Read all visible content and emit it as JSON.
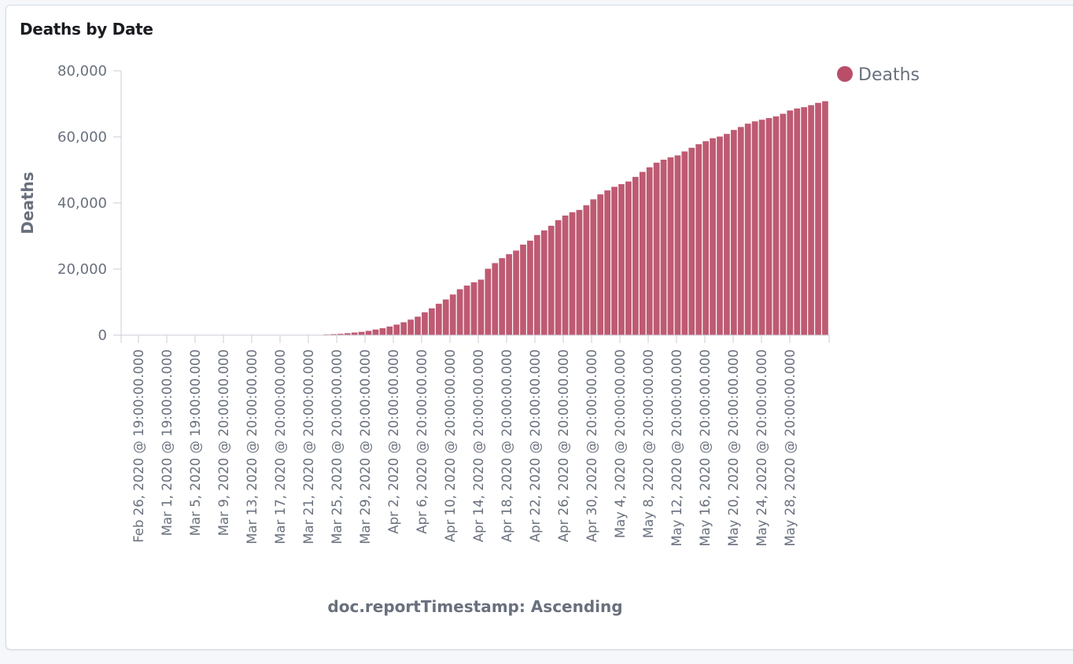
{
  "panel": {
    "title": "Deaths by Date"
  },
  "colors": {
    "series": "#be5a72",
    "legend_dot": "#b94e69",
    "axis": "#c8ccd5",
    "text": "#69707d"
  },
  "chart_data": {
    "type": "bar",
    "title": "Deaths by Date",
    "xlabel": "doc.reportTimestamp: Ascending",
    "ylabel": "Deaths",
    "ylim": [
      0,
      80000
    ],
    "y_ticks": [
      0,
      20000,
      40000,
      60000,
      80000
    ],
    "y_tick_labels": [
      "0",
      "20,000",
      "40,000",
      "60,000",
      "80,000"
    ],
    "x_start_date": "Feb 26, 2020",
    "x_end_date": "May 31, 2020",
    "x_tick_labels": [
      "Feb 26, 2020 @ 19:00:00.000",
      "Mar 1, 2020 @ 19:00:00.000",
      "Mar 5, 2020 @ 19:00:00.000",
      "Mar 9, 2020 @ 20:00:00.000",
      "Mar 13, 2020 @ 20:00:00.000",
      "Mar 17, 2020 @ 20:00:00.000",
      "Mar 21, 2020 @ 20:00:00.000",
      "Mar 25, 2020 @ 20:00:00.000",
      "Mar 29, 2020 @ 20:00:00.000",
      "Apr 2, 2020 @ 20:00:00.000",
      "Apr 6, 2020 @ 20:00:00.000",
      "Apr 10, 2020 @ 20:00:00.000",
      "Apr 14, 2020 @ 20:00:00.000",
      "Apr 18, 2020 @ 20:00:00.000",
      "Apr 22, 2020 @ 20:00:00.000",
      "Apr 26, 2020 @ 20:00:00.000",
      "Apr 30, 2020 @ 20:00:00.000",
      "May 4, 2020 @ 20:00:00.000",
      "May 8, 2020 @ 20:00:00.000",
      "May 12, 2020 @ 20:00:00.000",
      "May 16, 2020 @ 20:00:00.000",
      "May 20, 2020 @ 20:00:00.000",
      "May 24, 2020 @ 20:00:00.000",
      "May 28, 2020 @ 20:00:00.000"
    ],
    "legend": {
      "position": "top-right",
      "entries": [
        "Deaths"
      ]
    },
    "grid": false,
    "series": [
      {
        "name": "Deaths",
        "values": [
          0,
          0,
          0,
          0,
          0,
          0,
          0,
          0,
          0,
          0,
          0,
          0,
          0,
          0,
          0,
          0,
          0,
          0,
          0,
          0,
          0,
          0,
          0,
          0,
          0,
          0,
          0,
          200,
          300,
          400,
          600,
          800,
          1000,
          1300,
          1700,
          2100,
          2600,
          3200,
          3900,
          4700,
          5600,
          6900,
          8100,
          9500,
          10800,
          12300,
          13900,
          15000,
          16000,
          16800,
          20100,
          21800,
          23300,
          24500,
          25600,
          27400,
          28600,
          30300,
          31700,
          33100,
          34800,
          36200,
          37200,
          37900,
          39300,
          41100,
          42600,
          43800,
          44900,
          45700,
          46500,
          47900,
          49400,
          50800,
          52200,
          53100,
          53800,
          54400,
          55600,
          56700,
          57800,
          58700,
          59600,
          60100,
          60900,
          62100,
          63000,
          64000,
          64700,
          65200,
          65700,
          66200,
          67000,
          68000,
          68600,
          69000,
          69600,
          70300,
          70800
        ]
      }
    ]
  }
}
